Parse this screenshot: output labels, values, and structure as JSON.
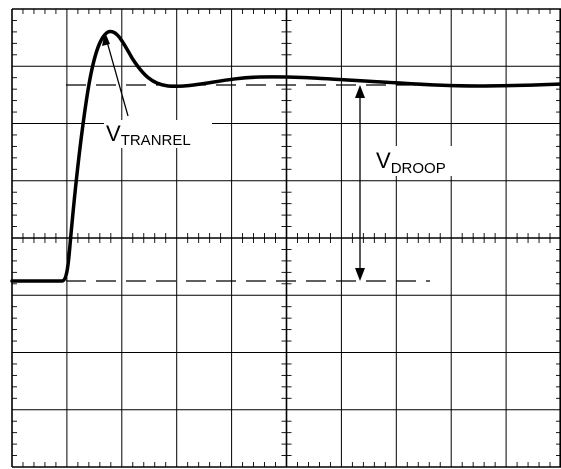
{
  "labels": {
    "tranrel": {
      "main": "V",
      "sub": "TRANREL"
    },
    "droop": {
      "main": "V",
      "sub": "DROOP"
    }
  },
  "colors": {
    "ink": "#000000",
    "background": "#ffffff"
  },
  "grid": {
    "divisions_x": 10,
    "divisions_y": 8,
    "minor_ticks_per_division": 5
  }
}
